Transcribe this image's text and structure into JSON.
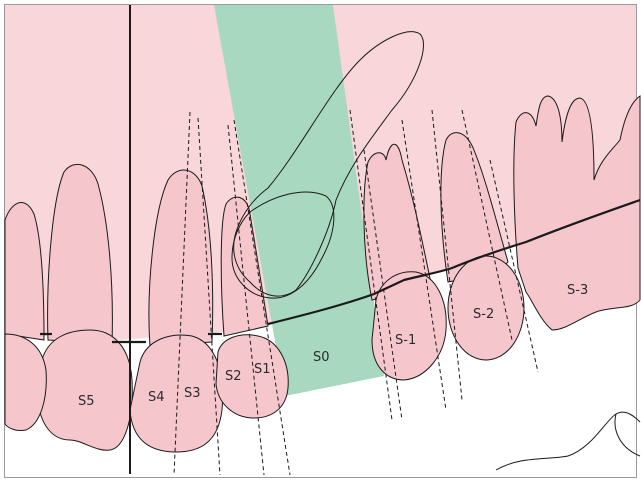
{
  "colors": {
    "background_tissue": "#f8d6da",
    "tooth_fill": "#f6c6cd",
    "sector_band": "#a8d9c0",
    "outline": "#1a1a1a"
  },
  "labels": {
    "s5": "S5",
    "s4": "S4",
    "s3": "S3",
    "s2": "S2",
    "s1": "S1",
    "s0": "S0",
    "s_minus_1": "S-1",
    "s_minus_2": "S-2",
    "s_minus_3": "S-3"
  }
}
